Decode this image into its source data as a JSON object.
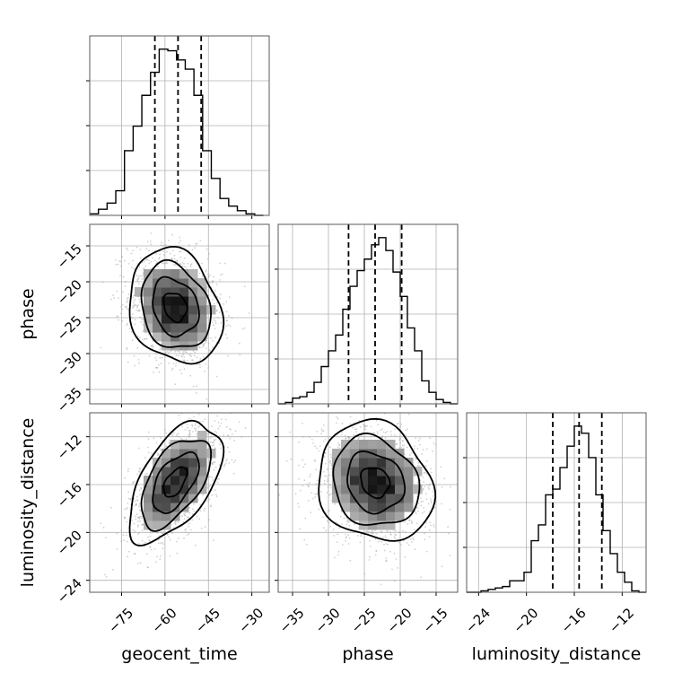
{
  "chart_data": {
    "type": "corner",
    "parameters": [
      "geocent_time",
      "phase",
      "luminosity_distance"
    ],
    "axes": {
      "geocent_time": {
        "label": "geocent_time",
        "range": [
          -86,
          -24
        ],
        "ticks": [
          -75,
          -60,
          -45,
          -30
        ],
        "tick_labels": [
          "−75",
          "−60",
          "−45",
          "−30"
        ]
      },
      "phase": {
        "label": "phase",
        "range": [
          -37,
          -12
        ],
        "ticks": [
          -35,
          -30,
          -25,
          -20,
          -15
        ],
        "tick_labels": [
          "−35",
          "−30",
          "−25",
          "−20",
          "−15"
        ]
      },
      "luminosity_distance": {
        "label": "luminosity_distance",
        "range": [
          -25,
          -10
        ],
        "ticks": [
          -24,
          -20,
          -16,
          -12
        ],
        "tick_labels": [
          "−24",
          "−20",
          "−16",
          "−12"
        ]
      }
    },
    "histograms": {
      "geocent_time": {
        "bin_edges": [
          -86,
          -83,
          -80,
          -77,
          -74,
          -71,
          -68,
          -65,
          -62,
          -59,
          -56,
          -53,
          -50,
          -47,
          -44,
          -41,
          -38,
          -35,
          -32,
          -29,
          -26
        ],
        "counts": [
          1,
          4,
          8,
          16,
          42,
          58,
          78,
          93,
          108,
          107,
          101,
          95,
          78,
          42,
          24,
          11,
          6,
          3,
          1,
          0
        ],
        "quantiles": [
          -63.5,
          -55.5,
          -47.5
        ]
      },
      "phase": {
        "bin_edges": [
          -37,
          -36,
          -35,
          -34,
          -33,
          -32,
          -31,
          -30,
          -29,
          -28,
          -27,
          -26,
          -25,
          -24,
          -23,
          -22,
          -21,
          -20,
          -19,
          -18,
          -17,
          -16,
          -15,
          -14,
          -13,
          -12
        ],
        "counts": [
          0,
          1,
          4,
          5,
          8,
          15,
          26,
          37,
          48,
          66,
          82,
          93,
          101,
          111,
          116,
          107,
          92,
          75,
          53,
          37,
          16,
          8,
          3,
          1,
          0
        ],
        "quantiles": [
          -27.2,
          -23.5,
          -19.8
        ]
      },
      "luminosity_distance": {
        "bin_edges": [
          -25,
          -24.4,
          -23.8,
          -23.2,
          -22.6,
          -22,
          -21.4,
          -20.8,
          -20.2,
          -19.6,
          -19,
          -18.4,
          -17.8,
          -17.2,
          -16.6,
          -16,
          -15.4,
          -14.8,
          -14.2,
          -13.6,
          -13,
          -12.4,
          -11.8,
          -11.2,
          -10.6,
          -10
        ],
        "counts": [
          0,
          0,
          1,
          2,
          3,
          4,
          8,
          8,
          14,
          36,
          47,
          68,
          72,
          87,
          102,
          116,
          111,
          94,
          68,
          43,
          27,
          14,
          7,
          1,
          0
        ],
        "quantiles": [
          -17.8,
          -15.6,
          -13.7
        ]
      }
    },
    "density_2d": {
      "geocent_time__phase": {
        "x": "geocent_time",
        "y": "phase",
        "mean": [
          -56.5,
          -23.5
        ],
        "sd": [
          8,
          4
        ],
        "corr": -0.2,
        "contour_levels": [
          0.5,
          1.0,
          1.5,
          2.0
        ]
      },
      "geocent_time__luminosity_distance": {
        "x": "geocent_time",
        "y": "luminosity_distance",
        "mean": [
          -56.5,
          -15.8
        ],
        "sd": [
          8,
          2.5
        ],
        "corr": 0.55,
        "contour_levels": [
          0.5,
          1.0,
          1.5,
          2.0
        ]
      },
      "phase__luminosity_distance": {
        "x": "phase",
        "y": "luminosity_distance",
        "mean": [
          -23.5,
          -15.8
        ],
        "sd": [
          4,
          2.5
        ],
        "corr": -0.15,
        "contour_levels": [
          0.5,
          1.0,
          1.5,
          2.0
        ]
      }
    },
    "grid": true
  }
}
